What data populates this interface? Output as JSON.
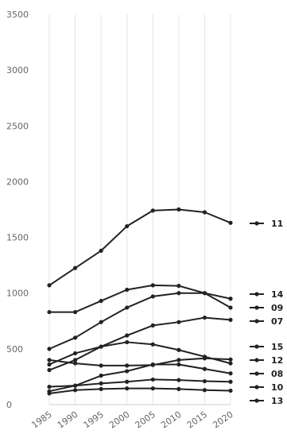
{
  "chart_data": {
    "type": "line",
    "x": [
      1985,
      1990,
      1995,
      2000,
      2005,
      2010,
      2015,
      2020
    ],
    "x_tick_labels": [
      "1985",
      "1990",
      "1995",
      "2000",
      "2005",
      "2010",
      "2015",
      "2020"
    ],
    "ylim": [
      0,
      3500
    ],
    "y_ticks": [
      0,
      500,
      1000,
      1500,
      2000,
      2500,
      3000,
      3500
    ],
    "grid": "vertical",
    "legend_position": "right",
    "line_color": "#222222",
    "series": [
      {
        "name": "11",
        "values": [
          1070,
          1225,
          1380,
          1600,
          1740,
          1750,
          1725,
          1630
        ]
      },
      {
        "name": "14",
        "values": [
          830,
          830,
          930,
          1030,
          1070,
          1065,
          1000,
          950
        ]
      },
      {
        "name": "09",
        "values": [
          500,
          600,
          740,
          870,
          970,
          1000,
          1000,
          870
        ]
      },
      {
        "name": "07",
        "values": [
          310,
          400,
          520,
          620,
          710,
          740,
          780,
          760
        ]
      },
      {
        "name": "15",
        "values": [
          360,
          460,
          520,
          560,
          540,
          490,
          430,
          370
        ]
      },
      {
        "name": "12",
        "values": [
          400,
          370,
          350,
          350,
          355,
          400,
          415,
          405
        ]
      },
      {
        "name": "08",
        "values": [
          120,
          170,
          260,
          300,
          360,
          360,
          320,
          280
        ]
      },
      {
        "name": "10",
        "values": [
          160,
          170,
          190,
          205,
          225,
          220,
          210,
          205
        ]
      },
      {
        "name": "13",
        "values": [
          100,
          130,
          140,
          145,
          145,
          140,
          130,
          125
        ]
      }
    ]
  }
}
